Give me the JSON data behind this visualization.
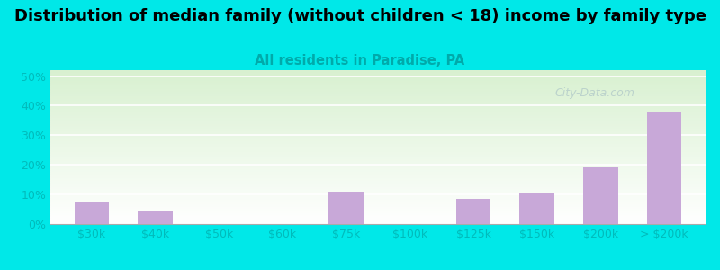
{
  "categories": [
    "$30k",
    "$40k",
    "$50k",
    "$60k",
    "$75k",
    "$100k",
    "$125k",
    "$150k",
    "$200k",
    "> $200k"
  ],
  "values": [
    7.5,
    4.5,
    0.0,
    0.0,
    11.0,
    0.0,
    8.5,
    10.2,
    19.2,
    38.0
  ],
  "bar_color": "#c8a8d8",
  "title": "Distribution of median family (without children < 18) income by family type",
  "subtitle": "All residents in Paradise, PA",
  "subtitle_color": "#00aaaa",
  "title_color": "#000000",
  "background_color": "#00e8e8",
  "plot_bg_top": "#d8f0d0",
  "plot_bg_bottom": "#ffffff",
  "ylabel_ticks": [
    "0%",
    "10%",
    "20%",
    "30%",
    "40%",
    "50%"
  ],
  "ytick_vals": [
    0,
    10,
    20,
    30,
    40,
    50
  ],
  "ylim": [
    0,
    52
  ],
  "title_fontsize": 13,
  "subtitle_fontsize": 10.5,
  "tick_fontsize": 9,
  "tick_color": "#00bbbb",
  "watermark": "City-Data.com",
  "grid_color": "#ccddcc"
}
